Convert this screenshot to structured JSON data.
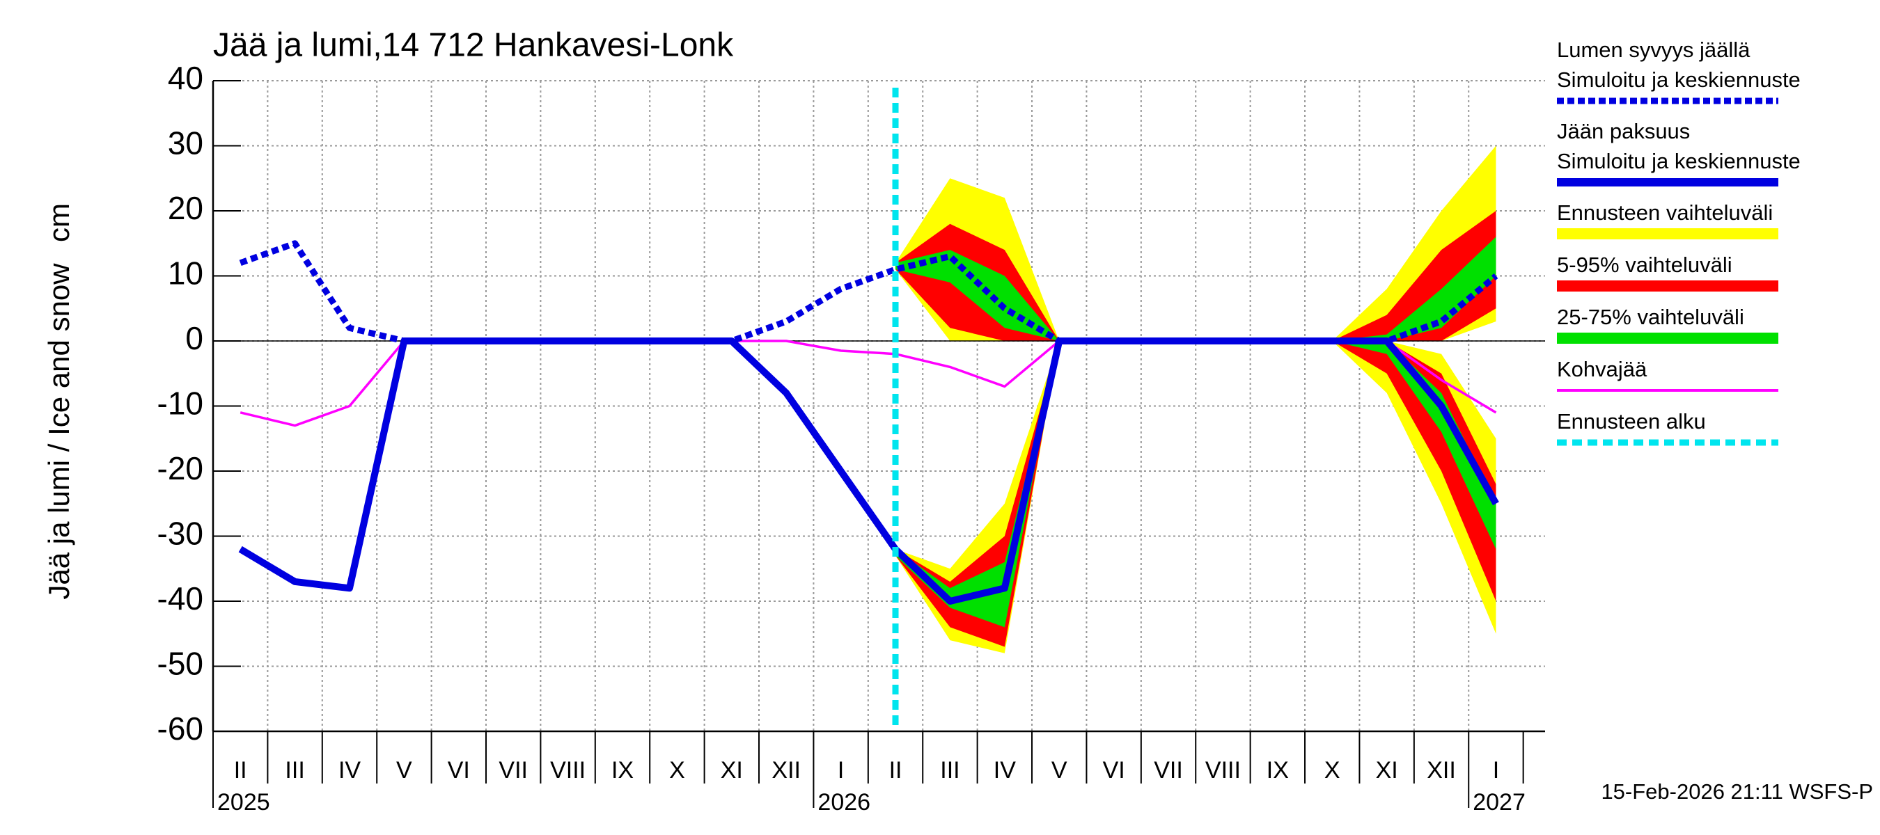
{
  "chart_data": {
    "type": "line",
    "title": "Jää ja lumi,14 712 Hankavesi-Lonk",
    "y_label": "Jää ja lumi / Ice and snow",
    "y_unit": "cm",
    "footer": "15-Feb-2026 21:11 WSFS-P",
    "categories": [
      "II",
      "III",
      "IV",
      "V",
      "VI",
      "VII",
      "VIII",
      "IX",
      "X",
      "XI",
      "XII",
      "I",
      "II",
      "III",
      "IV",
      "V",
      "VI",
      "VII",
      "VIII",
      "IX",
      "X",
      "XI",
      "XII",
      "I"
    ],
    "years": [
      "2025",
      null,
      null,
      null,
      null,
      null,
      null,
      null,
      null,
      null,
      null,
      "2026",
      null,
      null,
      null,
      null,
      null,
      null,
      null,
      null,
      null,
      null,
      null,
      "2027"
    ],
    "ylim": [
      -60,
      40
    ],
    "yticks": [
      40,
      30,
      20,
      10,
      0,
      -10,
      -20,
      -30,
      -40,
      -50,
      -60
    ],
    "grid": true,
    "bands": [
      {
        "name": "Ennusteen vaihteluväli",
        "color": "#ffff00",
        "snow_low": [
          null,
          null,
          null,
          null,
          null,
          null,
          null,
          null,
          null,
          null,
          null,
          null,
          11,
          0,
          0,
          0,
          0,
          0,
          0,
          0,
          0,
          0,
          0,
          3
        ],
        "snow_high": [
          null,
          null,
          null,
          null,
          null,
          null,
          null,
          null,
          null,
          null,
          null,
          null,
          12,
          25,
          22,
          0,
          0,
          0,
          0,
          0,
          0,
          8,
          20,
          30
        ],
        "ice_low": [
          null,
          null,
          null,
          null,
          null,
          null,
          null,
          null,
          null,
          null,
          null,
          null,
          -33,
          -46,
          -48,
          0,
          0,
          0,
          0,
          0,
          0,
          -8,
          -25,
          -45
        ],
        "ice_high": [
          null,
          null,
          null,
          null,
          null,
          null,
          null,
          null,
          null,
          null,
          null,
          null,
          -32,
          -35,
          -25,
          0,
          0,
          0,
          0,
          0,
          0,
          0,
          -2,
          -15
        ]
      },
      {
        "name": "5-95% vaihteluväli",
        "color": "#ff0000",
        "snow_low": [
          null,
          null,
          null,
          null,
          null,
          null,
          null,
          null,
          null,
          null,
          null,
          null,
          11,
          2,
          0,
          0,
          0,
          0,
          0,
          0,
          0,
          0,
          0,
          5
        ],
        "snow_high": [
          null,
          null,
          null,
          null,
          null,
          null,
          null,
          null,
          null,
          null,
          null,
          null,
          12,
          18,
          14,
          0,
          0,
          0,
          0,
          0,
          0,
          4,
          14,
          20
        ],
        "ice_low": [
          null,
          null,
          null,
          null,
          null,
          null,
          null,
          null,
          null,
          null,
          null,
          null,
          -33,
          -44,
          -47,
          0,
          0,
          0,
          0,
          0,
          0,
          -5,
          -20,
          -40
        ],
        "ice_high": [
          null,
          null,
          null,
          null,
          null,
          null,
          null,
          null,
          null,
          null,
          null,
          null,
          -32,
          -37,
          -30,
          0,
          0,
          0,
          0,
          0,
          0,
          0,
          -5,
          -22
        ]
      },
      {
        "name": "25-75% vaihteluväli",
        "color": "#00e000",
        "snow_low": [
          null,
          null,
          null,
          null,
          null,
          null,
          null,
          null,
          null,
          null,
          null,
          null,
          11,
          9,
          2,
          0,
          0,
          0,
          0,
          0,
          0,
          0,
          2,
          10
        ],
        "snow_high": [
          null,
          null,
          null,
          null,
          null,
          null,
          null,
          null,
          null,
          null,
          null,
          null,
          12,
          14,
          10,
          0,
          0,
          0,
          0,
          0,
          0,
          1,
          8,
          16
        ],
        "ice_low": [
          null,
          null,
          null,
          null,
          null,
          null,
          null,
          null,
          null,
          null,
          null,
          null,
          -33,
          -41,
          -44,
          0,
          0,
          0,
          0,
          0,
          0,
          -2,
          -14,
          -32
        ],
        "ice_high": [
          null,
          null,
          null,
          null,
          null,
          null,
          null,
          null,
          null,
          null,
          null,
          null,
          -32,
          -38,
          -34,
          0,
          0,
          0,
          0,
          0,
          0,
          0,
          -8,
          -25
        ]
      }
    ],
    "series": [
      {
        "name": "Lumen syvyys jäällä",
        "subname": "Simuloitu ja keskiennuste",
        "color": "#0000e0",
        "style": "dashed",
        "values": [
          12,
          15,
          2,
          0,
          0,
          0,
          0,
          0,
          0,
          0,
          3,
          8,
          11,
          13,
          5,
          0,
          0,
          0,
          0,
          0,
          0,
          0,
          3,
          10
        ]
      },
      {
        "name": "Jään paksuus",
        "subname": "Simuloitu ja keskiennuste",
        "color": "#0000e0",
        "style": "solid",
        "values": [
          -32,
          -37,
          -38,
          0,
          0,
          0,
          0,
          0,
          0,
          0,
          -8,
          -20,
          -32,
          -40,
          -38,
          0,
          0,
          0,
          0,
          0,
          0,
          0,
          -10,
          -25
        ]
      },
      {
        "name": "Kohvajää",
        "color": "#ff00ff",
        "style": "thin",
        "values": [
          -11,
          -13,
          -10,
          0,
          0,
          0,
          0,
          0,
          0,
          0,
          0,
          -1.5,
          -2,
          -4,
          -7,
          0,
          0,
          0,
          0,
          0,
          0,
          0,
          -6,
          -11
        ]
      }
    ],
    "forecast_start": {
      "name": "Ennusteen alku",
      "color": "#00e5ee"
    }
  }
}
